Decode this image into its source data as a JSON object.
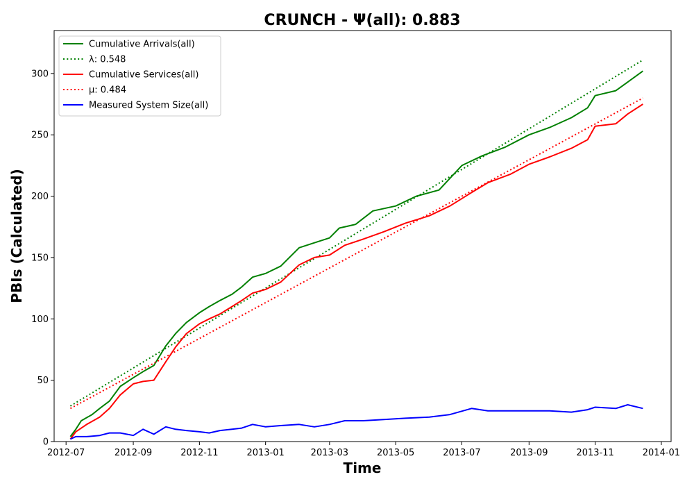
{
  "chart_data": {
    "type": "line",
    "title": "CRUNCH -  Ψ(all): 0.883",
    "xlabel": "Time",
    "ylabel": "PBIs (Calculated)",
    "xlim": [
      "2012-06-20",
      "2014-01-10"
    ],
    "ylim": [
      0,
      335
    ],
    "x_ticks": [
      "2012-07",
      "2012-09",
      "2012-11",
      "2013-01",
      "2013-03",
      "2013-05",
      "2013-07",
      "2013-09",
      "2013-11",
      "2014-01"
    ],
    "y_ticks": [
      0,
      50,
      100,
      150,
      200,
      250,
      300
    ],
    "grid": false,
    "legend_position": "top-left",
    "series": [
      {
        "name": "Cumulative Arrivals(all)",
        "color": "#008000",
        "style": "solid",
        "points": [
          [
            "2012-07-05",
            4
          ],
          [
            "2012-07-10",
            10
          ],
          [
            "2012-07-15",
            17
          ],
          [
            "2012-07-25",
            22
          ],
          [
            "2012-08-01",
            27
          ],
          [
            "2012-08-10",
            33
          ],
          [
            "2012-08-20",
            45
          ],
          [
            "2012-09-01",
            52
          ],
          [
            "2012-09-10",
            57
          ],
          [
            "2012-09-20",
            62
          ],
          [
            "2012-10-01",
            78
          ],
          [
            "2012-10-10",
            88
          ],
          [
            "2012-10-20",
            97
          ],
          [
            "2012-11-01",
            105
          ],
          [
            "2012-11-10",
            110
          ],
          [
            "2012-11-20",
            115
          ],
          [
            "2012-12-01",
            120
          ],
          [
            "2012-12-10",
            126
          ],
          [
            "2012-12-20",
            134
          ],
          [
            "2013-01-01",
            137
          ],
          [
            "2013-01-15",
            143
          ],
          [
            "2013-02-01",
            158
          ],
          [
            "2013-02-15",
            162
          ],
          [
            "2013-03-01",
            166
          ],
          [
            "2013-03-10",
            174
          ],
          [
            "2013-03-25",
            177
          ],
          [
            "2013-04-10",
            188
          ],
          [
            "2013-05-01",
            192
          ],
          [
            "2013-05-20",
            200
          ],
          [
            "2013-06-10",
            205
          ],
          [
            "2013-07-01",
            225
          ],
          [
            "2013-07-20",
            233
          ],
          [
            "2013-08-10",
            240
          ],
          [
            "2013-09-01",
            250
          ],
          [
            "2013-09-20",
            256
          ],
          [
            "2013-10-10",
            264
          ],
          [
            "2013-10-25",
            272
          ],
          [
            "2013-11-01",
            282
          ],
          [
            "2013-11-20",
            286
          ],
          [
            "2013-12-01",
            293
          ],
          [
            "2013-12-15",
            302
          ]
        ]
      },
      {
        "name": "λ: 0.548",
        "color": "#008000",
        "style": "dotted",
        "points": [
          [
            "2012-07-05",
            29
          ],
          [
            "2013-12-15",
            311
          ]
        ]
      },
      {
        "name": "Cumulative Services(all)",
        "color": "#ff0000",
        "style": "solid",
        "points": [
          [
            "2012-07-05",
            2
          ],
          [
            "2012-07-10",
            8
          ],
          [
            "2012-07-20",
            14
          ],
          [
            "2012-08-01",
            20
          ],
          [
            "2012-08-10",
            27
          ],
          [
            "2012-08-20",
            38
          ],
          [
            "2012-09-01",
            47
          ],
          [
            "2012-09-10",
            49
          ],
          [
            "2012-09-20",
            50
          ],
          [
            "2012-10-01",
            65
          ],
          [
            "2012-10-10",
            77
          ],
          [
            "2012-10-20",
            88
          ],
          [
            "2012-11-01",
            96
          ],
          [
            "2012-11-10",
            100
          ],
          [
            "2012-11-20",
            104
          ],
          [
            "2012-12-01",
            110
          ],
          [
            "2012-12-10",
            115
          ],
          [
            "2012-12-20",
            121
          ],
          [
            "2013-01-01",
            124
          ],
          [
            "2013-01-15",
            130
          ],
          [
            "2013-02-01",
            144
          ],
          [
            "2013-02-15",
            150
          ],
          [
            "2013-03-01",
            152
          ],
          [
            "2013-03-15",
            160
          ],
          [
            "2013-04-01",
            165
          ],
          [
            "2013-04-20",
            171
          ],
          [
            "2013-05-10",
            178
          ],
          [
            "2013-06-01",
            184
          ],
          [
            "2013-06-20",
            192
          ],
          [
            "2013-07-10",
            203
          ],
          [
            "2013-07-25",
            211
          ],
          [
            "2013-08-15",
            218
          ],
          [
            "2013-09-01",
            226
          ],
          [
            "2013-09-20",
            232
          ],
          [
            "2013-10-10",
            239
          ],
          [
            "2013-10-25",
            246
          ],
          [
            "2013-11-01",
            257
          ],
          [
            "2013-11-20",
            259
          ],
          [
            "2013-12-01",
            267
          ],
          [
            "2013-12-15",
            275
          ]
        ]
      },
      {
        "name": "μ: 0.484",
        "color": "#ff0000",
        "style": "dotted",
        "points": [
          [
            "2012-07-05",
            27
          ],
          [
            "2013-12-15",
            280
          ]
        ]
      },
      {
        "name": "Measured System Size(all)",
        "color": "#0000ff",
        "style": "solid",
        "points": [
          [
            "2012-07-05",
            2
          ],
          [
            "2012-07-10",
            4
          ],
          [
            "2012-07-20",
            4
          ],
          [
            "2012-08-01",
            5
          ],
          [
            "2012-08-10",
            7
          ],
          [
            "2012-08-20",
            7
          ],
          [
            "2012-09-01",
            5
          ],
          [
            "2012-09-10",
            10
          ],
          [
            "2012-09-20",
            6
          ],
          [
            "2012-10-01",
            12
          ],
          [
            "2012-10-10",
            10
          ],
          [
            "2012-10-20",
            9
          ],
          [
            "2012-11-01",
            8
          ],
          [
            "2012-11-10",
            7
          ],
          [
            "2012-11-20",
            9
          ],
          [
            "2012-12-01",
            10
          ],
          [
            "2012-12-10",
            11
          ],
          [
            "2012-12-20",
            14
          ],
          [
            "2013-01-01",
            12
          ],
          [
            "2013-01-15",
            13
          ],
          [
            "2013-02-01",
            14
          ],
          [
            "2013-02-15",
            12
          ],
          [
            "2013-03-01",
            14
          ],
          [
            "2013-03-15",
            17
          ],
          [
            "2013-04-01",
            17
          ],
          [
            "2013-04-20",
            18
          ],
          [
            "2013-05-10",
            19
          ],
          [
            "2013-06-01",
            20
          ],
          [
            "2013-06-20",
            22
          ],
          [
            "2013-07-10",
            27
          ],
          [
            "2013-07-25",
            25
          ],
          [
            "2013-08-15",
            25
          ],
          [
            "2013-09-01",
            25
          ],
          [
            "2013-09-20",
            25
          ],
          [
            "2013-10-10",
            24
          ],
          [
            "2013-10-25",
            26
          ],
          [
            "2013-11-01",
            28
          ],
          [
            "2013-11-20",
            27
          ],
          [
            "2013-12-01",
            30
          ],
          [
            "2013-12-15",
            27
          ]
        ]
      }
    ]
  }
}
